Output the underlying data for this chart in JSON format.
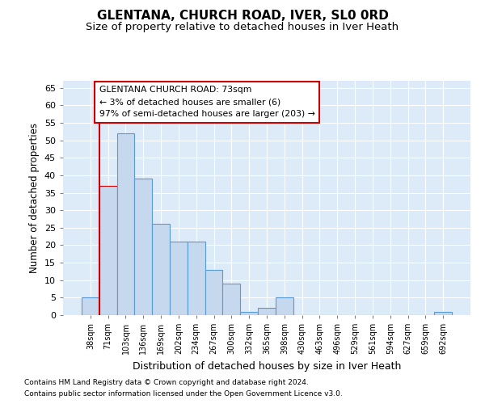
{
  "title": "GLENTANA, CHURCH ROAD, IVER, SL0 0RD",
  "subtitle": "Size of property relative to detached houses in Iver Heath",
  "xlabel": "Distribution of detached houses by size in Iver Heath",
  "ylabel": "Number of detached properties",
  "footer_line1": "Contains HM Land Registry data © Crown copyright and database right 2024.",
  "footer_line2": "Contains public sector information licensed under the Open Government Licence v3.0.",
  "categories": [
    "38sqm",
    "71sqm",
    "103sqm",
    "136sqm",
    "169sqm",
    "202sqm",
    "234sqm",
    "267sqm",
    "300sqm",
    "332sqm",
    "365sqm",
    "398sqm",
    "430sqm",
    "463sqm",
    "496sqm",
    "529sqm",
    "561sqm",
    "594sqm",
    "627sqm",
    "659sqm",
    "692sqm"
  ],
  "values": [
    5,
    37,
    52,
    39,
    26,
    21,
    21,
    13,
    9,
    1,
    2,
    5,
    0,
    0,
    0,
    0,
    0,
    0,
    0,
    0,
    1
  ],
  "bar_color": "#c5d8ed",
  "bar_edge_color": "#5b9bd5",
  "highlight_index": 1,
  "highlight_edge_color": "#cc0000",
  "annotation_text": "GLENTANA CHURCH ROAD: 73sqm\n← 3% of detached houses are smaller (6)\n97% of semi-detached houses are larger (203) →",
  "annotation_box_edge": "#cc0000",
  "ylim": [
    0,
    67
  ],
  "yticks": [
    0,
    5,
    10,
    15,
    20,
    25,
    30,
    35,
    40,
    45,
    50,
    55,
    60,
    65
  ],
  "bg_color": "#ddeaf8",
  "fig_bg_color": "#ffffff",
  "title_fontsize": 11,
  "subtitle_fontsize": 9.5,
  "vline_color": "#cc0000"
}
